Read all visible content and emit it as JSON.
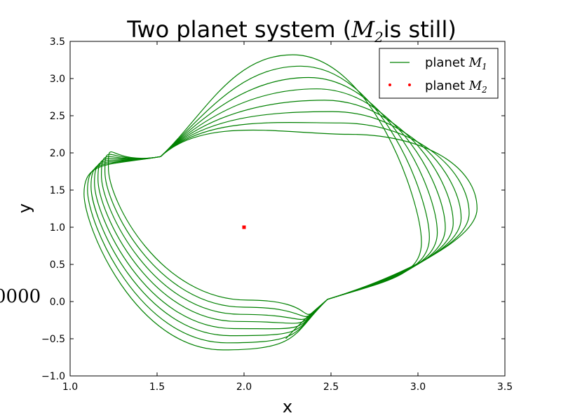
{
  "chart_data": {
    "type": "line",
    "title": {
      "prefix": "Two planet system (",
      "math": "M",
      "math_sub": "2",
      "suffix": "is still)"
    },
    "xlabel": "x",
    "ylabel": "y",
    "xlim": [
      1.0,
      3.5
    ],
    "ylim": [
      -1.0,
      3.5
    ],
    "xticks": [
      1.0,
      1.5,
      2.0,
      2.5,
      3.0,
      3.5
    ],
    "xtick_labels": [
      "1.0",
      "1.5",
      "2.0",
      "2.5",
      "3.0",
      "3.5"
    ],
    "yticks": [
      -1.0,
      -0.5,
      0.0,
      0.5,
      1.0,
      1.5,
      2.0,
      2.5,
      3.0,
      3.5
    ],
    "ytick_labels": [
      "−1.0",
      "−0.5",
      "0.0",
      "0.5",
      "1.0",
      "1.5",
      "2.0",
      "2.5",
      "3.0",
      "3.5"
    ],
    "grid": false,
    "legend_position": "top-right",
    "side_text": "0000",
    "series": [
      {
        "name_prefix": "planet ",
        "name_math": "M",
        "name_sub": "1",
        "style": "line",
        "color": "#008000",
        "orbits": {
          "count": 8,
          "pinch_a": [
            1.52,
            1.95
          ],
          "pinch_b": [
            2.48,
            0.03
          ],
          "first": {
            "left": [
              1.08,
              1.45
            ],
            "top": [
              2.6,
              2.25
            ],
            "right": [
              3.34,
              1.25
            ],
            "bottom": [
              1.88,
              -0.65
            ]
          },
          "last": {
            "left": [
              1.22,
              1.8
            ],
            "top": [
              2.28,
              3.32
            ],
            "right": [
              3.02,
              0.8
            ],
            "bottom": [
              2.02,
              0.02
            ]
          },
          "trail_end": [
            2.24,
            -0.5
          ]
        }
      },
      {
        "name_prefix": "planet ",
        "name_math": "M",
        "name_sub": "2",
        "style": "point",
        "color": "#ff0000",
        "x": [
          2.0
        ],
        "y": [
          1.0
        ]
      }
    ]
  }
}
